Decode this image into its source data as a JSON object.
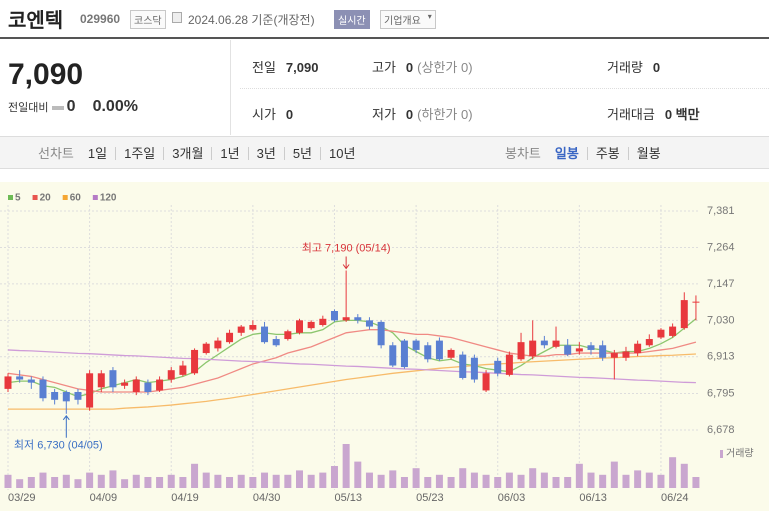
{
  "header": {
    "name": "코엔텍",
    "code": "029960",
    "market": "코스닥",
    "date": "2024.06.28 기준(개장전)",
    "realtime": "실시간",
    "overview": "기업개요"
  },
  "quote": {
    "price": "7,090",
    "change_label": "전일대비",
    "change": "0",
    "change_pct": "0.00%"
  },
  "stats": [
    {
      "label": "전일",
      "value": "7,090"
    },
    {
      "label": "고가",
      "value": "0",
      "note": "(상한가 0)"
    },
    {
      "label": "거래량",
      "value": "0"
    },
    {
      "label": "시가",
      "value": "0"
    },
    {
      "label": "저가",
      "value": "0",
      "note": "(하한가 0)"
    },
    {
      "label": "거래대금",
      "value": "0 백만"
    }
  ],
  "tabs": {
    "line_label": "선차트",
    "line": [
      "1일",
      "1주일",
      "3개월",
      "1년",
      "3년",
      "5년",
      "10년"
    ],
    "candle_label": "봉차트",
    "candle": [
      "일봉",
      "주봉",
      "월봉"
    ]
  },
  "chart_data": {
    "type": "candlestick",
    "x": [
      "03/29",
      "04/01",
      "04/02",
      "04/03",
      "04/04",
      "04/05",
      "04/08",
      "04/09",
      "04/11",
      "04/12",
      "04/15",
      "04/16",
      "04/17",
      "04/18",
      "04/19",
      "04/22",
      "04/23",
      "04/24",
      "04/25",
      "04/26",
      "04/29",
      "04/30",
      "05/02",
      "05/03",
      "05/07",
      "05/08",
      "05/09",
      "05/10",
      "05/13",
      "05/14",
      "05/16",
      "05/17",
      "05/20",
      "05/21",
      "05/22",
      "05/23",
      "05/24",
      "05/27",
      "05/28",
      "05/29",
      "05/30",
      "05/31",
      "06/03",
      "06/04",
      "06/05",
      "06/07",
      "06/10",
      "06/11",
      "06/12",
      "06/13",
      "06/14",
      "06/17",
      "06/18",
      "06/19",
      "06/20",
      "06/21",
      "06/24",
      "06/25",
      "06/26",
      "06/27"
    ],
    "open": [
      6810,
      6850,
      6840,
      6840,
      6800,
      6800,
      6800,
      6750,
      6815,
      6870,
      6820,
      6800,
      6830,
      6805,
      6840,
      6855,
      6860,
      6925,
      6940,
      6960,
      6990,
      7000,
      7010,
      6970,
      6970,
      6990,
      7005,
      7015,
      7060,
      7030,
      7040,
      7030,
      7025,
      6950,
      6965,
      6965,
      6950,
      6965,
      6910,
      6920,
      6910,
      6805,
      6900,
      6855,
      6905,
      6915,
      6965,
      6945,
      6950,
      6930,
      6950,
      6950,
      6910,
      6910,
      6925,
      6950,
      6975,
      6980,
      7005,
      7090
    ],
    "high": [
      6860,
      6870,
      6850,
      6850,
      6810,
      6805,
      6810,
      6870,
      6870,
      6880,
      6840,
      6850,
      6840,
      6850,
      6880,
      6900,
      6940,
      6960,
      6975,
      7000,
      7015,
      7030,
      7025,
      6980,
      7000,
      7035,
      7030,
      7045,
      7065,
      7190,
      7050,
      7040,
      7030,
      6960,
      6970,
      6970,
      6960,
      6975,
      6940,
      6930,
      6920,
      6870,
      6910,
      6930,
      6990,
      7030,
      6980,
      7010,
      6970,
      6960,
      6960,
      6965,
      6935,
      6945,
      6965,
      6985,
      7005,
      7020,
      7120,
      7110
    ],
    "low": [
      6800,
      6830,
      6810,
      6770,
      6760,
      6730,
      6760,
      6740,
      6800,
      6800,
      6810,
      6790,
      6790,
      6800,
      6830,
      6850,
      6855,
      6920,
      6930,
      6955,
      6980,
      6995,
      6955,
      6945,
      6965,
      6985,
      7000,
      7010,
      7025,
      7025,
      7020,
      7000,
      6940,
      6880,
      6875,
      6925,
      6895,
      6900,
      6905,
      6840,
      6830,
      6800,
      6850,
      6850,
      6900,
      6905,
      6940,
      6940,
      6915,
      6920,
      6920,
      6900,
      6840,
      6900,
      6915,
      6945,
      6970,
      6975,
      7000,
      7030
    ],
    "close": [
      6850,
      6840,
      6830,
      6780,
      6775,
      6770,
      6775,
      6860,
      6860,
      6815,
      6830,
      6840,
      6800,
      6840,
      6870,
      6885,
      6935,
      6955,
      6965,
      6990,
      7010,
      7015,
      6960,
      6950,
      6995,
      7030,
      7025,
      7035,
      7030,
      7040,
      7030,
      7010,
      6950,
      6885,
      6880,
      6935,
      6905,
      6905,
      6935,
      6845,
      6840,
      6860,
      6860,
      6920,
      6960,
      6965,
      6950,
      6965,
      6920,
      6940,
      6935,
      6910,
      6925,
      6930,
      6955,
      6970,
      7000,
      7010,
      7095,
      7090
    ],
    "volume": [
      12,
      8,
      10,
      14,
      10,
      12,
      8,
      14,
      12,
      16,
      8,
      12,
      10,
      10,
      12,
      10,
      22,
      14,
      12,
      10,
      12,
      10,
      14,
      12,
      12,
      16,
      12,
      14,
      20,
      40,
      24,
      14,
      12,
      16,
      10,
      18,
      10,
      12,
      10,
      18,
      14,
      12,
      10,
      14,
      12,
      18,
      14,
      10,
      10,
      22,
      14,
      12,
      24,
      12,
      16,
      14,
      12,
      28,
      22,
      10
    ],
    "volume_label": "거래량",
    "volume_color": "#c9a6cf",
    "up_color": "#e8383d",
    "down_color": "#5a7fd2",
    "series": [
      {
        "name": "5",
        "color": "#6dbb55",
        "line_color": "#8cc66e",
        "values": [
          6830,
          6835,
          6835,
          6820,
          6815,
          6800,
          6785,
          6795,
          6810,
          6820,
          6830,
          6840,
          6830,
          6835,
          6840,
          6850,
          6865,
          6895,
          6920,
          6945,
          6970,
          6985,
          6990,
          6985,
          6985,
          6990,
          6990,
          7000,
          7025,
          7030,
          7030,
          7025,
          7010,
          6990,
          6950,
          6930,
          6910,
          6900,
          6905,
          6890,
          6885,
          6875,
          6870,
          6865,
          6885,
          6910,
          6930,
          6950,
          6950,
          6950,
          6940,
          6935,
          6925,
          6930,
          6930,
          6940,
          6955,
          6975,
          7005,
          7035
        ]
      },
      {
        "name": "20",
        "color": "#e8554e",
        "line_color": "#f08a84",
        "values": [
          6860,
          6855,
          6850,
          6840,
          6830,
          6820,
          6810,
          6805,
          6800,
          6800,
          6800,
          6800,
          6800,
          6805,
          6810,
          6815,
          6825,
          6835,
          6845,
          6860,
          6875,
          6890,
          6900,
          6910,
          6925,
          6935,
          6945,
          6960,
          6975,
          6990,
          6995,
          7000,
          7000,
          6995,
          6990,
          6985,
          6985,
          6980,
          6975,
          6965,
          6955,
          6945,
          6935,
          6925,
          6920,
          6915,
          6915,
          6920,
          6920,
          6925,
          6925,
          6925,
          6925,
          6925,
          6925,
          6930,
          6935,
          6940,
          6950,
          6960
        ]
      },
      {
        "name": "60",
        "color": "#f5a632",
        "line_color": "#f7bb6a",
        "values": [
          6745,
          6745,
          6745,
          6745,
          6745,
          6745,
          6745,
          6745,
          6745,
          6745,
          6748,
          6750,
          6752,
          6755,
          6758,
          6762,
          6766,
          6770,
          6775,
          6780,
          6786,
          6792,
          6798,
          6804,
          6810,
          6816,
          6822,
          6828,
          6834,
          6840,
          6845,
          6850,
          6855,
          6860,
          6864,
          6868,
          6872,
          6876,
          6879,
          6882,
          6885,
          6888,
          6890,
          6892,
          6895,
          6897,
          6899,
          6901,
          6903,
          6905,
          6907,
          6909,
          6910,
          6912,
          6914,
          6915,
          6917,
          6918,
          6920,
          6922
        ]
      },
      {
        "name": "120",
        "color": "#b57bc6",
        "line_color": "#cf9cd8",
        "values": [
          6935,
          6933,
          6932,
          6930,
          6928,
          6926,
          6924,
          6923,
          6921,
          6919,
          6917,
          6916,
          6914,
          6912,
          6910,
          6908,
          6907,
          6905,
          6903,
          6901,
          6899,
          6898,
          6896,
          6894,
          6892,
          6890,
          6889,
          6887,
          6885,
          6883,
          6882,
          6880,
          6878,
          6876,
          6874,
          6873,
          6871,
          6869,
          6867,
          6865,
          6864,
          6862,
          6860,
          6858,
          6856,
          6855,
          6853,
          6851,
          6849,
          6847,
          6846,
          6844,
          6842,
          6840,
          6838,
          6837,
          6835,
          6833,
          6831,
          6830
        ]
      }
    ],
    "ylim": [
      6678,
      7381
    ],
    "yticks": [
      {
        "value": 6678,
        "label": "6,678"
      },
      {
        "value": 6795,
        "label": "6,795"
      },
      {
        "value": 6913,
        "label": "6,913"
      },
      {
        "value": 7030,
        "label": "7,030"
      },
      {
        "value": 7147,
        "label": "7,147"
      },
      {
        "value": 7264,
        "label": "7,264"
      },
      {
        "value": 7381,
        "label": "7,381"
      }
    ],
    "xticks": [
      "03/29",
      "04/09",
      "04/19",
      "04/30",
      "05/13",
      "05/23",
      "06/03",
      "06/13",
      "06/24"
    ],
    "grid": true,
    "high_label": "최고 7,190 (05/14)",
    "low_label": "최저 6,730 (04/05)"
  }
}
